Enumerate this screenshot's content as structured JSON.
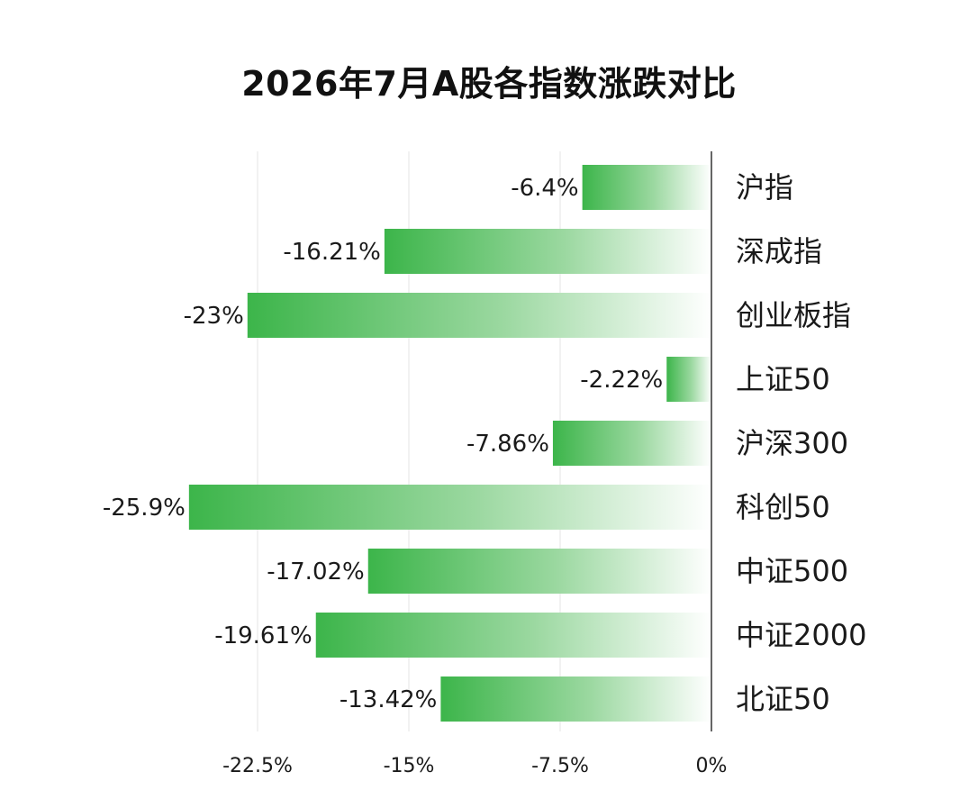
{
  "title": "2026年7月A股各指数涨跌对比",
  "chart_data": {
    "type": "bar",
    "orientation": "horizontal",
    "title": "2026年7月A股各指数涨跌对比",
    "categories": [
      "沪指",
      "深成指",
      "创业板指",
      "上证50",
      "沪深300",
      "科创50",
      "中证500",
      "中证2000",
      "北证50"
    ],
    "values": [
      -6.4,
      -16.21,
      -23,
      -2.22,
      -7.86,
      -25.9,
      -17.02,
      -19.61,
      -13.42
    ],
    "value_labels": [
      "-6.4%",
      "-16.21%",
      "-23%",
      "-2.22%",
      "-7.86%",
      "-25.9%",
      "-17.02%",
      "-19.61%",
      "-13.42%"
    ],
    "xlim": [
      -30,
      0
    ],
    "xticks": [
      -22.5,
      -15,
      -7.5,
      0
    ],
    "xtick_labels": [
      "-22.5%",
      "-15%",
      "-7.5%",
      "0%"
    ],
    "gridlines": "vertical",
    "bar_color": "#3cb54a",
    "bar_fade_color": "#ffffff"
  }
}
